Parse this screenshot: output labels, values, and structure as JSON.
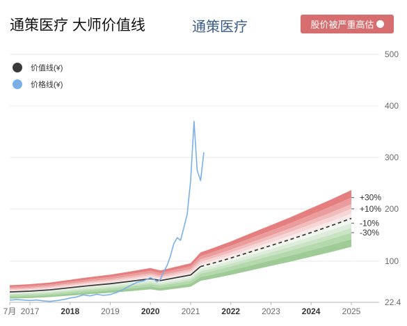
{
  "header": {
    "title": "通策医疗 大师价值线",
    "stock_name": "通策医疗",
    "badge_label": "股价被严重高估",
    "badge_color": "#d66e70"
  },
  "legend": [
    {
      "label": "价值线(¥)",
      "color": "#3a3a3a"
    },
    {
      "label": "价格线(¥)",
      "color": "#7ab0e6"
    }
  ],
  "chart_data": {
    "type": "area",
    "y_scale": "log",
    "ylim": [
      22.4,
      500
    ],
    "y_ticks": [
      {
        "value": 500,
        "label": "500"
      },
      {
        "value": 400,
        "label": "400"
      },
      {
        "value": 300,
        "label": "300"
      },
      {
        "value": 200,
        "label": "200"
      },
      {
        "value": 100,
        "label": "100"
      },
      {
        "value": 22.4,
        "label": "22.4"
      }
    ],
    "x_ticks": [
      {
        "label": "7月",
        "date": "2016-07",
        "bold": false
      },
      {
        "label": "2017",
        "date": "2017-01",
        "bold": false
      },
      {
        "label": "2018",
        "date": "2018-01",
        "bold": true
      },
      {
        "label": "2019",
        "date": "2019-01",
        "bold": false
      },
      {
        "label": "2020",
        "date": "2020-01",
        "bold": true
      },
      {
        "label": "2021",
        "date": "2021-01",
        "bold": false
      },
      {
        "label": "2022",
        "date": "2022-01",
        "bold": true
      },
      {
        "label": "2023",
        "date": "2023-01",
        "bold": false
      },
      {
        "label": "2024",
        "date": "2024-01",
        "bold": true
      },
      {
        "label": "2025",
        "date": "2025-01",
        "bold": false
      }
    ],
    "band_labels": [
      "+30%",
      "+10%",
      "-10%",
      "-30%"
    ],
    "band_multipliers": [
      1.3,
      1.22,
      1.15,
      1.1,
      1.05,
      1.0,
      0.95,
      0.9,
      0.85,
      0.78,
      0.7
    ],
    "band_colors": [
      "#e57f7f",
      "#eb9c9c",
      "#f1bcbc",
      "#f6d6d6",
      "#fbeaea",
      "#f1f7ef",
      "#deeddb",
      "#c9e3c4",
      "#b4d9ad",
      "#9ecb96"
    ],
    "value_line": {
      "name": "价值线(¥)",
      "color": "#3a3a3a",
      "points": [
        [
          "2016-07",
          42.0
        ],
        [
          "2017-01",
          43.5
        ],
        [
          "2017-07",
          46.0
        ],
        [
          "2018-01",
          50.0
        ],
        [
          "2018-07",
          54.0
        ],
        [
          "2019-01",
          57.5
        ],
        [
          "2019-07",
          62.0
        ],
        [
          "2020-01",
          67.0
        ],
        [
          "2020-04",
          63.5
        ],
        [
          "2020-07",
          67.0
        ],
        [
          "2021-01",
          74.0
        ],
        [
          "2021-04",
          90.0
        ],
        [
          "2021-07",
          95.0
        ],
        [
          "2022-01",
          106.0
        ],
        [
          "2022-07",
          118.0
        ],
        [
          "2023-01",
          130.0
        ],
        [
          "2023-07",
          142.0
        ],
        [
          "2024-01",
          155.0
        ],
        [
          "2024-07",
          168.0
        ],
        [
          "2025-01",
          182.0
        ]
      ],
      "projected_from": "2021-04"
    },
    "price_line": {
      "name": "价格线(¥)",
      "color": "#7ab0e6",
      "points": [
        [
          "2016-07",
          26.5
        ],
        [
          "2016-09",
          27.5
        ],
        [
          "2016-11",
          26.8
        ],
        [
          "2017-01",
          25.8
        ],
        [
          "2017-03",
          26.8
        ],
        [
          "2017-05",
          25.2
        ],
        [
          "2017-07",
          24.2
        ],
        [
          "2017-09",
          25.6
        ],
        [
          "2017-11",
          27.5
        ],
        [
          "2018-01",
          30.5
        ],
        [
          "2018-03",
          32.5
        ],
        [
          "2018-05",
          36.5
        ],
        [
          "2018-07",
          34.5
        ],
        [
          "2018-09",
          37.5
        ],
        [
          "2018-11",
          35.5
        ],
        [
          "2019-01",
          37.0
        ],
        [
          "2019-03",
          41.0
        ],
        [
          "2019-05",
          47.0
        ],
        [
          "2019-07",
          54.0
        ],
        [
          "2019-09",
          60.0
        ],
        [
          "2019-11",
          63.0
        ],
        [
          "2020-01",
          69.0
        ],
        [
          "2020-02",
          66.0
        ],
        [
          "2020-03",
          61.0
        ],
        [
          "2020-04",
          66.0
        ],
        [
          "2020-05",
          80.0
        ],
        [
          "2020-06",
          92.0
        ],
        [
          "2020-07",
          110.0
        ],
        [
          "2020-08",
          134.0
        ],
        [
          "2020-09",
          145.0
        ],
        [
          "2020-10",
          140.0
        ],
        [
          "2020-11",
          165.0
        ],
        [
          "2020-12",
          190.0
        ],
        [
          "2021-01",
          255.0
        ],
        [
          "2021-02",
          370.0
        ],
        [
          "2021-03",
          275.0
        ],
        [
          "2021-04",
          255.0
        ],
        [
          "2021-05",
          310.0
        ]
      ]
    }
  }
}
